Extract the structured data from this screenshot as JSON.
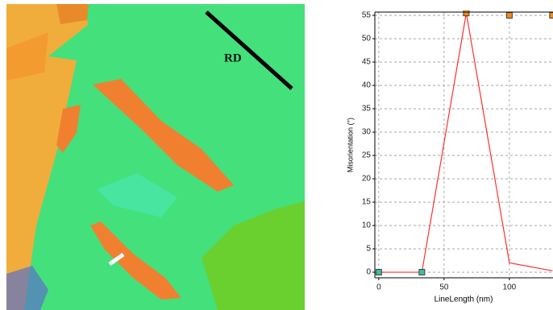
{
  "map_label": "RD",
  "chart_data": {
    "type": "line",
    "ylabel": "Misorientation (°)",
    "xlabel": "LineLength (nm)",
    "x": [
      0,
      33,
      67,
      100,
      133
    ],
    "series": [
      {
        "color": "#ff3030",
        "values": [
          0,
          0,
          55.5,
          2,
          0.3
        ],
        "marker": false
      },
      {
        "color": "#404040",
        "values": [
          0,
          0,
          55.5,
          55,
          55
        ],
        "marker": true,
        "line": false,
        "marker_colors": [
          "#38c0a8",
          "#38c0a8",
          "#f08a1c",
          "#f08a1c",
          "#f08a1c"
        ]
      }
    ],
    "xlim": [
      -3,
      134
    ],
    "xticks": [
      0,
      50,
      100
    ],
    "ylim": [
      -1.2,
      55.7
    ],
    "yticks": [
      0,
      5,
      10,
      15,
      20,
      25,
      30,
      35,
      40,
      45,
      50,
      55
    ],
    "grid": true
  }
}
